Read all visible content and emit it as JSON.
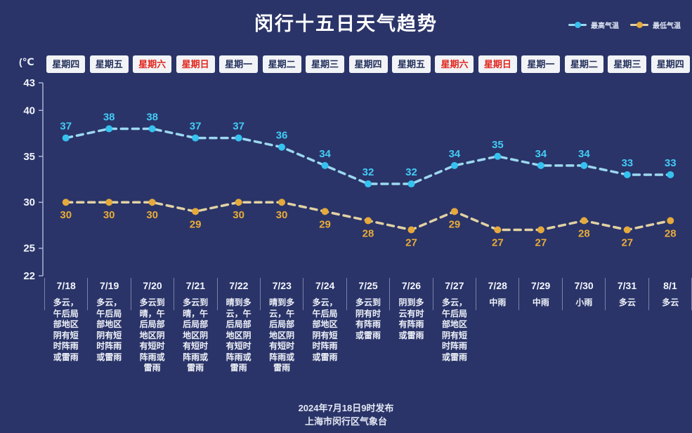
{
  "title": "闵行十五日天气趋势",
  "unit_label": "(℃",
  "legend": [
    {
      "label": "最高气温",
      "color": "#35c2f0"
    },
    {
      "label": "最低气温",
      "color": "#e5a93c"
    }
  ],
  "colors": {
    "background": "#2a3468",
    "high_dot": "#35c2f0",
    "high_line": "#9cd8f0",
    "high_label": "#43cbf6",
    "low_dot": "#e5a93c",
    "low_line": "#e2d2a4",
    "low_label": "#e9ac39",
    "axis": "#aab4d4",
    "tick_label": "#f2f4fa",
    "weekend_text": "#e1251c",
    "weekday_text": "#22305c"
  },
  "days": [
    {
      "weekday": "星期四",
      "weekend": false,
      "date": "7/18",
      "desc": "多云，午后局部地区阴有短时阵雨或雷雨"
    },
    {
      "weekday": "星期五",
      "weekend": false,
      "date": "7/19",
      "desc": "多云，午后局部地区阴有短时阵雨或雷雨"
    },
    {
      "weekday": "星期六",
      "weekend": true,
      "date": "7/20",
      "desc": "多云到晴，午后局部地区阴有短时阵雨或雷雨"
    },
    {
      "weekday": "星期日",
      "weekend": true,
      "date": "7/21",
      "desc": "多云到晴，午后局部地区阴有短时阵雨或雷雨"
    },
    {
      "weekday": "星期一",
      "weekend": false,
      "date": "7/22",
      "desc": "晴到多云，午后局部地区阴有短时阵雨或雷雨"
    },
    {
      "weekday": "星期二",
      "weekend": false,
      "date": "7/23",
      "desc": "晴到多云，午后局部地区阴有短时阵雨或雷雨"
    },
    {
      "weekday": "星期三",
      "weekend": false,
      "date": "7/24",
      "desc": "多云，午后局部地区阴有短时阵雨或雷雨"
    },
    {
      "weekday": "星期四",
      "weekend": false,
      "date": "7/25",
      "desc": "多云到阴有时有阵雨或雷雨"
    },
    {
      "weekday": "星期五",
      "weekend": false,
      "date": "7/26",
      "desc": "阴到多云有时有阵雨或雷雨"
    },
    {
      "weekday": "星期六",
      "weekend": true,
      "date": "7/27",
      "desc": "多云，午后局部地区阴有短时阵雨或雷雨"
    },
    {
      "weekday": "星期日",
      "weekend": true,
      "date": "7/28",
      "desc": "中雨"
    },
    {
      "weekday": "星期一",
      "weekend": false,
      "date": "7/29",
      "desc": "中雨"
    },
    {
      "weekday": "星期二",
      "weekend": false,
      "date": "7/30",
      "desc": "小雨"
    },
    {
      "weekday": "星期三",
      "weekend": false,
      "date": "7/31",
      "desc": "多云"
    },
    {
      "weekday": "星期四",
      "weekend": false,
      "date": "8/1",
      "desc": "多云"
    }
  ],
  "chart_data": {
    "type": "line",
    "title": "闵行十五日天气趋势",
    "categories": [
      "7/18",
      "7/19",
      "7/20",
      "7/21",
      "7/22",
      "7/23",
      "7/24",
      "7/25",
      "7/26",
      "7/27",
      "7/28",
      "7/29",
      "7/30",
      "7/31",
      "8/1"
    ],
    "weekdays": [
      "星期四",
      "星期五",
      "星期六",
      "星期日",
      "星期一",
      "星期二",
      "星期三",
      "星期四",
      "星期五",
      "星期六",
      "星期日",
      "星期一",
      "星期二",
      "星期三",
      "星期四"
    ],
    "series": [
      {
        "name": "最高气温",
        "color": "#35c2f0",
        "values": [
          37,
          38,
          38,
          37,
          37,
          36,
          34,
          32,
          32,
          34,
          35,
          34,
          34,
          33,
          33
        ]
      },
      {
        "name": "最低气温",
        "color": "#e5a93c",
        "values": [
          30,
          30,
          30,
          29,
          30,
          30,
          29,
          28,
          27,
          29,
          27,
          27,
          28,
          27,
          28
        ]
      }
    ],
    "ylabel": "(℃",
    "xlabel": "",
    "y_ticks": [
      43,
      40,
      35,
      30,
      25,
      22
    ],
    "ylim": [
      22,
      43
    ],
    "grid": false,
    "line_style": "dashed",
    "legend_position": "top-right"
  },
  "footer": {
    "line1": "2024年7月18日9时发布",
    "line2": "上海市闵行区气象台"
  }
}
